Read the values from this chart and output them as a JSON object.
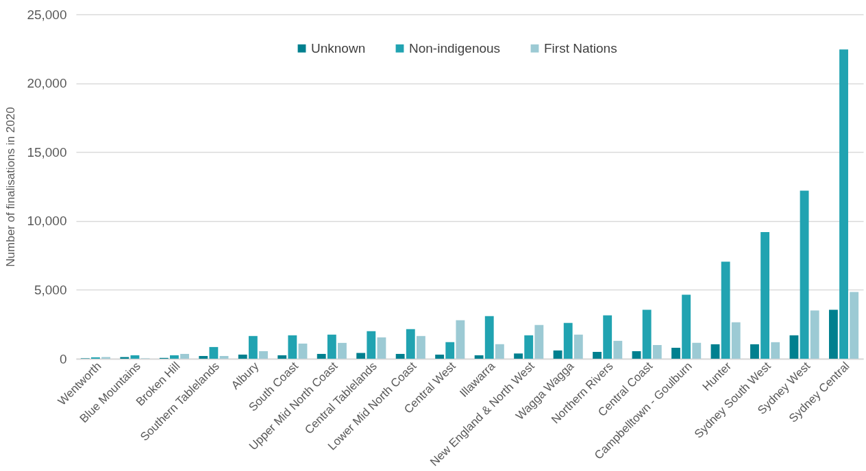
{
  "chart_data": {
    "type": "bar",
    "ylabel": "Number of finalisations in 2020",
    "categories": [
      "Wentworth",
      "Blue Mountains",
      "Broken Hill",
      "Southern Tablelands",
      "Albury",
      "South Coast",
      "Upper Mid North Coast",
      "Central Tablelands",
      "Lower Mid North Coast",
      "Central West",
      "Illawarra",
      "New England & North West",
      "Wagga Wagga",
      "Northern Rivers",
      "Central Coast",
      "Campbelltown - Goulburn",
      "Hunter",
      "Sydney South West",
      "Sydney West",
      "Sydney Central"
    ],
    "series": [
      {
        "name": "Unknown",
        "color": "#00808f",
        "values": [
          30,
          120,
          60,
          200,
          300,
          250,
          350,
          420,
          350,
          300,
          250,
          380,
          600,
          500,
          550,
          800,
          1050,
          1050,
          1700,
          3550
        ]
      },
      {
        "name": "Non-indigenous",
        "color": "#21a3b1",
        "values": [
          100,
          250,
          250,
          850,
          1650,
          1700,
          1750,
          2000,
          2150,
          1200,
          3100,
          1700,
          2600,
          3150,
          3550,
          4650,
          7050,
          9200,
          12200,
          22450
        ]
      },
      {
        "name": "First Nations",
        "color": "#9ccad4",
        "values": [
          120,
          30,
          350,
          200,
          550,
          1100,
          1150,
          1550,
          1650,
          2800,
          1050,
          2450,
          1750,
          1300,
          1000,
          1150,
          2650,
          1200,
          3500,
          4850
        ]
      }
    ],
    "ylim": [
      0,
      25000
    ],
    "yticks": [
      0,
      {
        "value": 5000,
        "label": "5,000"
      },
      {
        "value": 10000,
        "label": "10,000"
      },
      {
        "value": 15000,
        "label": "15,000"
      },
      {
        "value": 20000,
        "label": "20,000"
      },
      {
        "value": 25000,
        "label": "25,000"
      }
    ],
    "grid": "y",
    "legend": "top"
  }
}
